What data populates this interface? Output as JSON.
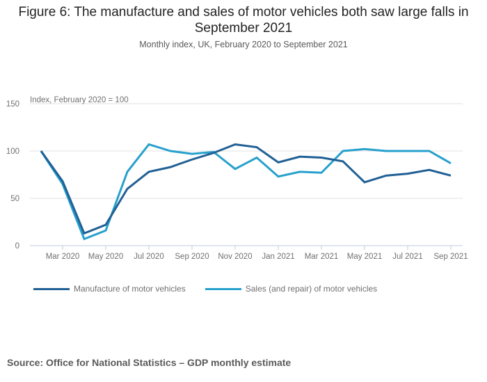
{
  "chart_data": {
    "type": "line",
    "title": "Figure 6: The manufacture and sales of motor vehicles both saw large falls in September 2021",
    "subtitle": "Monthly index, UK, February 2020 to September 2021",
    "ylabel": "Index, February 2020 = 100",
    "xlabel": "",
    "ylim": [
      0,
      150
    ],
    "yticks": [
      0,
      50,
      100,
      150
    ],
    "grid": true,
    "legend_position": "bottom-left",
    "x": [
      "Feb 2020",
      "Mar 2020",
      "Apr 2020",
      "May 2020",
      "Jun 2020",
      "Jul 2020",
      "Aug 2020",
      "Sep 2020",
      "Oct 2020",
      "Nov 2020",
      "Dec 2020",
      "Jan 2021",
      "Feb 2021",
      "Mar 2021",
      "Apr 2021",
      "May 2021",
      "Jun 2021",
      "Jul 2021",
      "Aug 2021",
      "Sep 2021"
    ],
    "xtick_labels": [
      "Mar 2020",
      "May 2020",
      "Jul 2020",
      "Sep 2020",
      "Nov 2020",
      "Jan 2021",
      "Mar 2021",
      "May 2021",
      "Jul 2021",
      "Sep 2021"
    ],
    "series": [
      {
        "name": "Manufacture of motor vehicles",
        "color": "#206095",
        "values": [
          100,
          68,
          13,
          22,
          60,
          78,
          83,
          91,
          98,
          107,
          104,
          88,
          94,
          93,
          89,
          67,
          74,
          76,
          80,
          74
        ]
      },
      {
        "name": "Sales (and repair) of motor vehicles",
        "color": "#27a0cc",
        "values": [
          100,
          65,
          7,
          16,
          78,
          107,
          100,
          97,
          99,
          81,
          93,
          73,
          78,
          77,
          100,
          102,
          100,
          100,
          100,
          87
        ]
      }
    ]
  },
  "source": "Source: Office for National Statistics – GDP monthly estimate"
}
